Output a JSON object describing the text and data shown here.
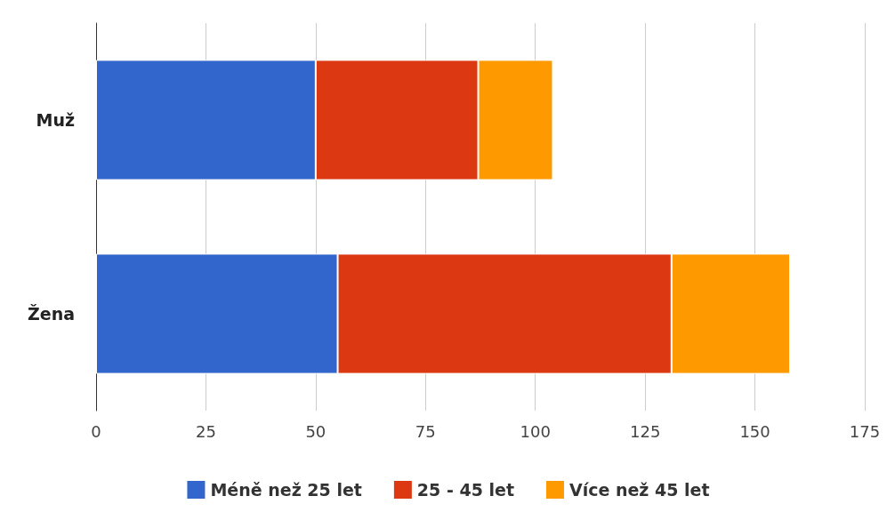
{
  "chart_data": {
    "type": "bar",
    "orientation": "horizontal",
    "stacked": true,
    "categories": [
      "Muž",
      "Žena"
    ],
    "series": [
      {
        "name": "Méně než 25 let",
        "color": "#3366cc",
        "values": [
          50,
          55
        ]
      },
      {
        "name": "25 - 45 let",
        "color": "#dc3912",
        "values": [
          37,
          76
        ]
      },
      {
        "name": "Více než 45 let",
        "color": "#ff9900",
        "values": [
          17,
          27
        ]
      }
    ],
    "xlim": [
      0,
      175
    ],
    "xticks": [
      0,
      25,
      50,
      75,
      100,
      125,
      150,
      175
    ],
    "grid": "x",
    "legend": "bottom"
  }
}
